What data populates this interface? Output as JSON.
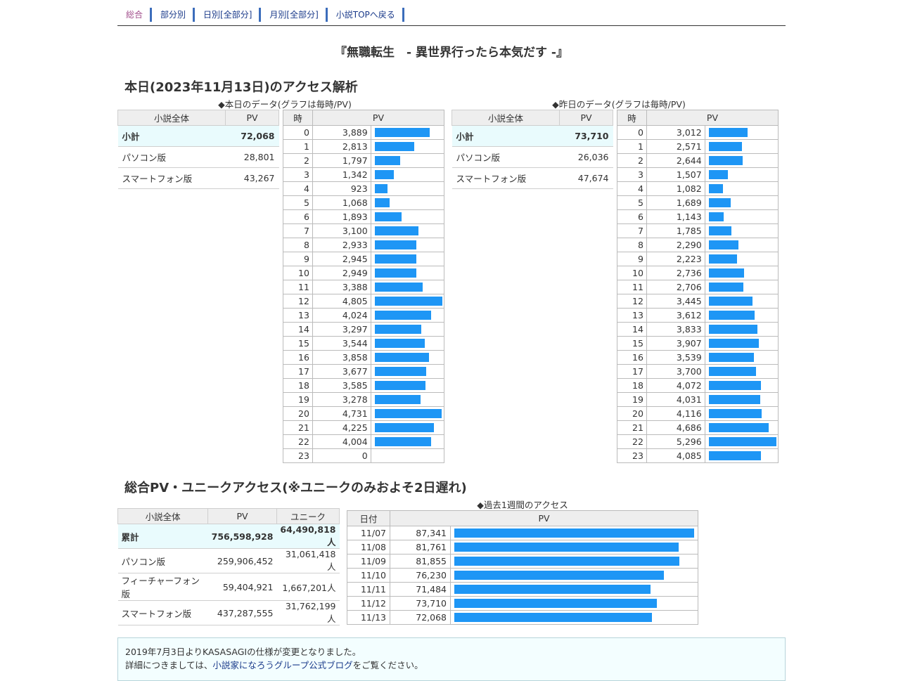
{
  "nav": {
    "items": [
      "総合",
      "部分別",
      "日別[全部分]",
      "月別[全部分]",
      "小説TOPへ戻る"
    ]
  },
  "novel_title": "『無職転生　- 異世界行ったら本気だす -』",
  "today_heading": "本日(2023年11月13日)のアクセス解析",
  "today": {
    "caption": "◆本日のデータ(グラフは毎時/PV)",
    "summary_headers": [
      "小説全体",
      "PV"
    ],
    "summary_rows": [
      {
        "label": "小計",
        "value": "72,068"
      },
      {
        "label": "パソコン版",
        "value": "28,801"
      },
      {
        "label": "スマートフォン版",
        "value": "43,267"
      }
    ],
    "hour_headers": [
      "時",
      "PV"
    ],
    "hours": [
      "0",
      "1",
      "2",
      "3",
      "4",
      "5",
      "6",
      "7",
      "8",
      "9",
      "10",
      "11",
      "12",
      "13",
      "14",
      "15",
      "16",
      "17",
      "18",
      "19",
      "20",
      "21",
      "22",
      "23"
    ],
    "pv_text": [
      "3,889",
      "2,813",
      "1,797",
      "1,342",
      "923",
      "1,068",
      "1,893",
      "3,100",
      "2,933",
      "2,945",
      "2,949",
      "3,388",
      "4,805",
      "4,024",
      "3,297",
      "3,544",
      "3,858",
      "3,677",
      "3,585",
      "3,278",
      "4,731",
      "4,225",
      "4,004",
      "0"
    ],
    "pv": [
      3889,
      2813,
      1797,
      1342,
      923,
      1068,
      1893,
      3100,
      2933,
      2945,
      2949,
      3388,
      4805,
      4024,
      3297,
      3544,
      3858,
      3677,
      3585,
      3278,
      4731,
      4225,
      4004,
      0
    ]
  },
  "yesterday": {
    "caption": "◆昨日のデータ(グラフは毎時/PV)",
    "summary_headers": [
      "小説全体",
      "PV"
    ],
    "summary_rows": [
      {
        "label": "小計",
        "value": "73,710"
      },
      {
        "label": "パソコン版",
        "value": "26,036"
      },
      {
        "label": "スマートフォン版",
        "value": "47,674"
      }
    ],
    "hour_headers": [
      "時",
      "PV"
    ],
    "hours": [
      "0",
      "1",
      "2",
      "3",
      "4",
      "5",
      "6",
      "7",
      "8",
      "9",
      "10",
      "11",
      "12",
      "13",
      "14",
      "15",
      "16",
      "17",
      "18",
      "19",
      "20",
      "21",
      "22",
      "23"
    ],
    "pv_text": [
      "3,012",
      "2,571",
      "2,644",
      "1,507",
      "1,082",
      "1,689",
      "1,143",
      "1,785",
      "2,290",
      "2,223",
      "2,736",
      "2,706",
      "3,445",
      "3,612",
      "3,833",
      "3,907",
      "3,539",
      "3,700",
      "4,072",
      "4,031",
      "4,116",
      "4,686",
      "5,296",
      "4,085"
    ],
    "pv": [
      3012,
      2571,
      2644,
      1507,
      1082,
      1689,
      1143,
      1785,
      2290,
      2223,
      2736,
      2706,
      3445,
      3612,
      3833,
      3907,
      3539,
      3700,
      4072,
      4031,
      4116,
      4686,
      5296,
      4085
    ]
  },
  "bar_color": "#1e96f5",
  "total_heading": "総合PV・ユニークアクセス(※ユニークのみおよそ2日遅れ)",
  "total": {
    "headers": [
      "小説全体",
      "PV",
      "ユニーク"
    ],
    "rows": [
      {
        "label": "累計",
        "pv": "756,598,928",
        "unique": "64,490,818人"
      },
      {
        "label": "パソコン版",
        "pv": "259,906,452",
        "unique": "31,061,418人"
      },
      {
        "label": "フィーチャーフォン版",
        "pv": "59,404,921",
        "unique": "1,667,201人"
      },
      {
        "label": "スマートフォン版",
        "pv": "437,287,555",
        "unique": "31,762,199人"
      }
    ]
  },
  "week": {
    "caption": "◆過去1週間のアクセス",
    "headers": [
      "日付",
      "PV"
    ],
    "dates": [
      "11/07",
      "11/08",
      "11/09",
      "11/10",
      "11/11",
      "11/12",
      "11/13"
    ],
    "pv_text": [
      "87,341",
      "81,761",
      "81,855",
      "76,230",
      "71,484",
      "73,710",
      "72,068"
    ],
    "pv": [
      87341,
      81761,
      81855,
      76230,
      71484,
      73710,
      72068
    ]
  },
  "notice": {
    "line1": "2019年7月3日よりKASASAGIの仕様が変更となりました。",
    "line2_prefix": "詳細につきましては、",
    "line2_link": "小説家になろうグループ公式ブログ",
    "line2_suffix": "をご覧ください。"
  }
}
